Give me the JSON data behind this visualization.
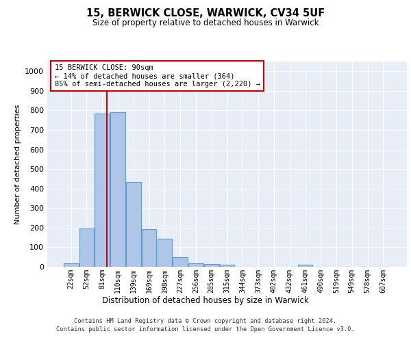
{
  "title1": "15, BERWICK CLOSE, WARWICK, CV34 5UF",
  "title2": "Size of property relative to detached houses in Warwick",
  "xlabel": "Distribution of detached houses by size in Warwick",
  "ylabel": "Number of detached properties",
  "categories": [
    "22sqm",
    "52sqm",
    "81sqm",
    "110sqm",
    "139sqm",
    "169sqm",
    "198sqm",
    "227sqm",
    "256sqm",
    "285sqm",
    "315sqm",
    "344sqm",
    "373sqm",
    "402sqm",
    "432sqm",
    "461sqm",
    "490sqm",
    "519sqm",
    "549sqm",
    "578sqm",
    "607sqm"
  ],
  "values": [
    18,
    197,
    785,
    790,
    435,
    193,
    142,
    50,
    18,
    13,
    12,
    0,
    0,
    0,
    0,
    12,
    0,
    0,
    0,
    0,
    0
  ],
  "bar_color": "#aec6e8",
  "bar_edge_color": "#5b9bd5",
  "bar_edge_width": 0.8,
  "redline_color": "#cc0000",
  "annotation_text": "15 BERWICK CLOSE: 90sqm\n← 14% of detached houses are smaller (364)\n85% of semi-detached houses are larger (2,220) →",
  "annotation_box_color": "#ffffff",
  "annotation_box_edge": "#cc0000",
  "ylim": [
    0,
    1050
  ],
  "yticks": [
    0,
    100,
    200,
    300,
    400,
    500,
    600,
    700,
    800,
    900,
    1000
  ],
  "background_color": "#e8eef8",
  "footer_line1": "Contains HM Land Registry data © Crown copyright and database right 2024.",
  "footer_line2": "Contains public sector information licensed under the Open Government Licence v3.0."
}
